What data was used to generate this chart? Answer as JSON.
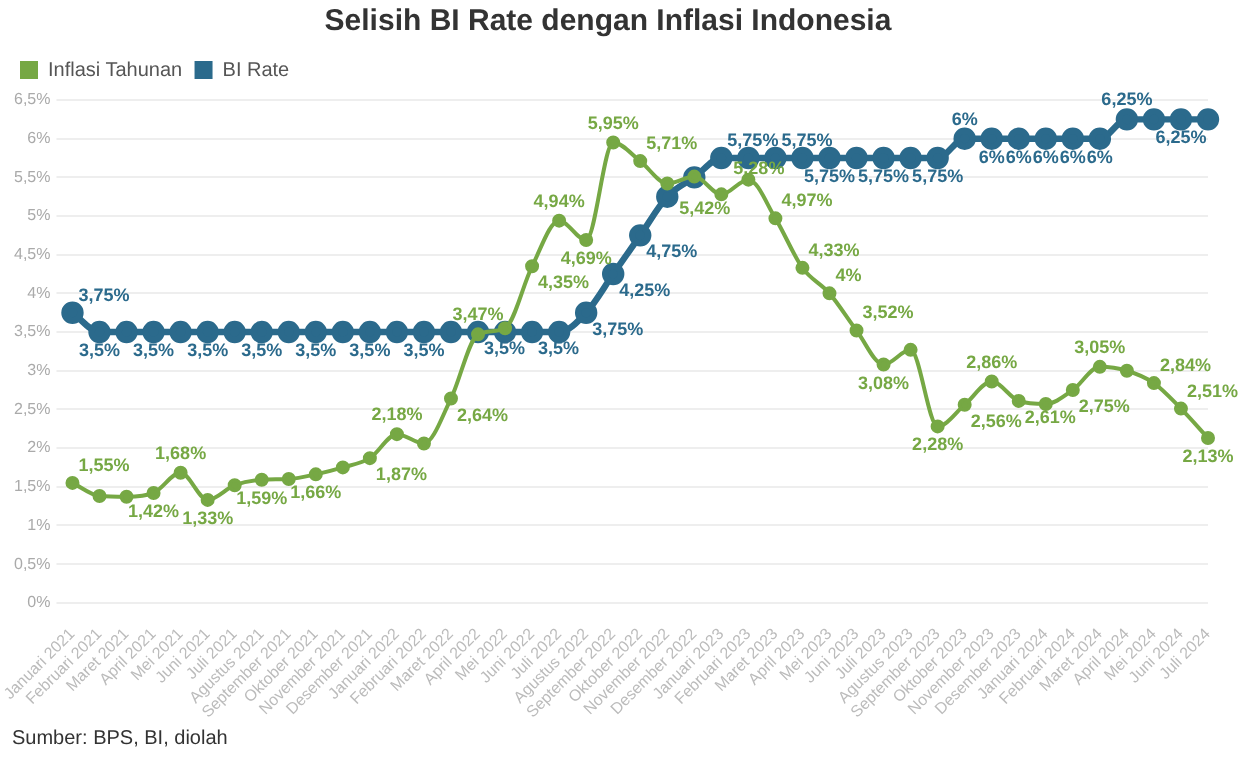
{
  "chart_data": {
    "type": "line",
    "title": "Selisih BI Rate dengan Inflasi Indonesia",
    "categories": [
      "Januari 2021",
      "Februari 2021",
      "Maret 2021",
      "April 2021",
      "Mei 2021",
      "Juni 2021",
      "Juli 2021",
      "Agustus 2021",
      "September 2021",
      "Oktober 2021",
      "November 2021",
      "Desember 2021",
      "Januari 2022",
      "Februari 2022",
      "Maret 2022",
      "April 2022",
      "Mei 2022",
      "Juni 2022",
      "Juli 2022",
      "Agustus 2022",
      "September 2022",
      "Oktober 2022",
      "November 2022",
      "Desember 2022",
      "Januari 2023",
      "Februari 2023",
      "Maret 2023",
      "April 2023",
      "Mei 2023",
      "Juni 2023",
      "Juli 2023",
      "Agustus 2023",
      "September 2023",
      "Oktober 2023",
      "November 2023",
      "Desember 2023",
      "Januari 2024",
      "Februari 2024",
      "Maret 2024",
      "April 2024",
      "Mei 2024",
      "Juni 2024",
      "Juli 2024"
    ],
    "series": [
      {
        "name": "Inflasi Tahunan",
        "color": "#76a844",
        "values": [
          1.55,
          1.38,
          1.37,
          1.42,
          1.68,
          1.33,
          1.52,
          1.59,
          1.6,
          1.66,
          1.75,
          1.87,
          2.18,
          2.06,
          2.64,
          3.47,
          3.55,
          4.35,
          4.94,
          4.69,
          5.95,
          5.71,
          5.42,
          5.51,
          5.28,
          5.47,
          4.97,
          4.33,
          4,
          3.52,
          3.08,
          3.27,
          2.28,
          2.56,
          2.86,
          2.61,
          2.57,
          2.75,
          3.05,
          3.0,
          2.84,
          2.51,
          2.13
        ],
        "value_labels": [
          "1,55%",
          null,
          null,
          "1,42%",
          "1,68%",
          "1,33%",
          null,
          "1,59%",
          null,
          "1,66%",
          null,
          "1,87%",
          "2,18%",
          null,
          "2,64%",
          "3,47%",
          null,
          "4,35%",
          "4,94%",
          "4,69%",
          "5,95%",
          "5,71%",
          "5,42%",
          null,
          "5,28%",
          null,
          "4,97%",
          "4,33%",
          "4%",
          "3,52%",
          "3,08%",
          null,
          "2,28%",
          "2,56%",
          "2,86%",
          "2,61%",
          null,
          "2,75%",
          "3,05%",
          null,
          "2,84%",
          "2,51%",
          "2,13%"
        ]
      },
      {
        "name": "BI Rate",
        "color": "#2b6a8c",
        "values": [
          3.75,
          3.5,
          3.5,
          3.5,
          3.5,
          3.5,
          3.5,
          3.5,
          3.5,
          3.5,
          3.5,
          3.5,
          3.5,
          3.5,
          3.5,
          3.5,
          3.5,
          3.5,
          3.5,
          3.75,
          4.25,
          4.75,
          5.25,
          5.5,
          5.75,
          5.75,
          5.75,
          5.75,
          5.75,
          5.75,
          5.75,
          5.75,
          5.75,
          6,
          6,
          6,
          6,
          6,
          6,
          6.25,
          6.25,
          6.25,
          6.25
        ],
        "value_labels": [
          "3,75%",
          "3,5%",
          null,
          "3,5%",
          null,
          "3,5%",
          null,
          "3,5%",
          null,
          "3,5%",
          null,
          "3,5%",
          null,
          "3,5%",
          null,
          "3,5%",
          null,
          "3,5%",
          null,
          "3,75%",
          "4,25%",
          "4,75%",
          null,
          null,
          "5,75%",
          null,
          "5,75%",
          null,
          "5,75%",
          null,
          "5,75%",
          null,
          "5,75%",
          "6%",
          "6%",
          "6%",
          "6%",
          "6%",
          "6%",
          "6,25%",
          null,
          "6,25%",
          null
        ]
      }
    ],
    "ylim": [
      0,
      6.5
    ],
    "yticks": [
      {
        "value": 0,
        "label": "0%"
      },
      {
        "value": 0.5,
        "label": "0,5%"
      },
      {
        "value": 1,
        "label": "1%"
      },
      {
        "value": 1.5,
        "label": "1,5%"
      },
      {
        "value": 2,
        "label": "2%"
      },
      {
        "value": 2.5,
        "label": "2,5%"
      },
      {
        "value": 3,
        "label": "3%"
      },
      {
        "value": 3.5,
        "label": "3,5%"
      },
      {
        "value": 4,
        "label": "4%"
      },
      {
        "value": 4.5,
        "label": "4,5%"
      },
      {
        "value": 5,
        "label": "5%"
      },
      {
        "value": 5.5,
        "label": "5,5%"
      },
      {
        "value": 6,
        "label": "6%"
      },
      {
        "value": 6.5,
        "label": "6,5%"
      }
    ],
    "grid": "y",
    "legend": "top left",
    "marker": "circle",
    "line_style": "solid",
    "annotations": [
      "Sumber: BPS, BI, diolah"
    ]
  }
}
